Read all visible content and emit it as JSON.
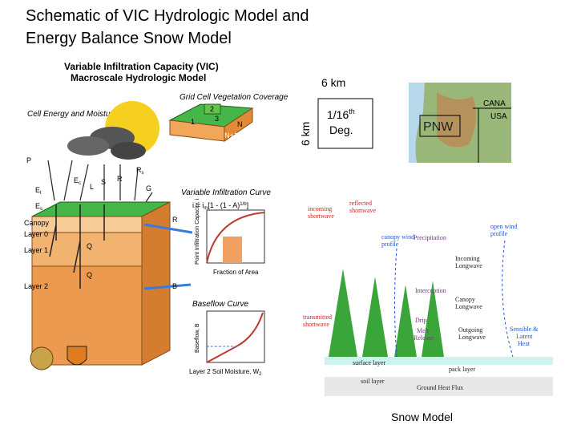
{
  "title": {
    "line1": "Schematic of VIC Hydrologic Model and",
    "line2": "Energy Balance Snow Model"
  },
  "vic": {
    "heading1": "Variable Infiltration Capacity (VIC)",
    "heading2": "Macroscale Hydrologic Model",
    "coverage": "Grid Cell Vegetation Coverage",
    "fluxes": "Cell Energy and Moisture Fluxes",
    "tiles": [
      "1",
      "2",
      "3",
      "N",
      "N+1"
    ],
    "flux_labels": {
      "p": "P",
      "e": "E",
      "ec": "c",
      "et": "t",
      "es": "s",
      "l": "L",
      "s": "S",
      "r": "R",
      "rs_main": "R",
      "rs_sub": "s",
      "g": "G",
      "q1": "Q",
      "q2": "Q"
    },
    "layers": [
      "Canopy",
      "Layer 0",
      "Layer 1",
      "Layer 2"
    ],
    "infiltration_title": "Variable Infiltration Curve",
    "formula": "i = i",
    "formula_rest": "[1 - (1 - A)",
    "formula_exp": "1/b",
    "formula_end": "]",
    "infiltration_y": "Point Infiltration Capacity, i",
    "infiltration_x": "Fraction of Area",
    "r": "R",
    "b": "B",
    "baseflow_title": "Baseflow Curve",
    "baseflow_y": "Baseflow, B",
    "baseflow_x": "Layer 2 Soil Moisture, W",
    "baseflow_x_sub": "2"
  },
  "grid": {
    "top": "6 km",
    "side": "6 km",
    "res": "1/16",
    "res_sup": "th",
    "res_unit": "Deg."
  },
  "map": {
    "canada": "CANA",
    "usa": "USA",
    "region": "PNW"
  },
  "snow": {
    "incoming_sw": [
      "incoming",
      "shortwave"
    ],
    "reflected_sw": [
      "reflected",
      "shortwave"
    ],
    "canopy_wind": [
      "canopy wind",
      "profile"
    ],
    "precip": "Precipitation",
    "open_wind": [
      "open wind",
      "profile"
    ],
    "incoming_lw": [
      "Incoming",
      "Longwave"
    ],
    "interception": "Interception",
    "canopy_lw": [
      "Canopy",
      "Longwave"
    ],
    "transmitted_sw": [
      "transmitted",
      "shortwave"
    ],
    "drip": "Drip",
    "melt": [
      "Melt",
      "Release"
    ],
    "outgoing_lw": [
      "Outgoing",
      "Longwave"
    ],
    "sensible": [
      "Sensible &",
      "Latent",
      "Heat"
    ],
    "surface": "surface layer",
    "pack": "pack layer",
    "soil": "soil layer",
    "ground": "Ground Heat Flux",
    "caption": "Snow Model"
  }
}
